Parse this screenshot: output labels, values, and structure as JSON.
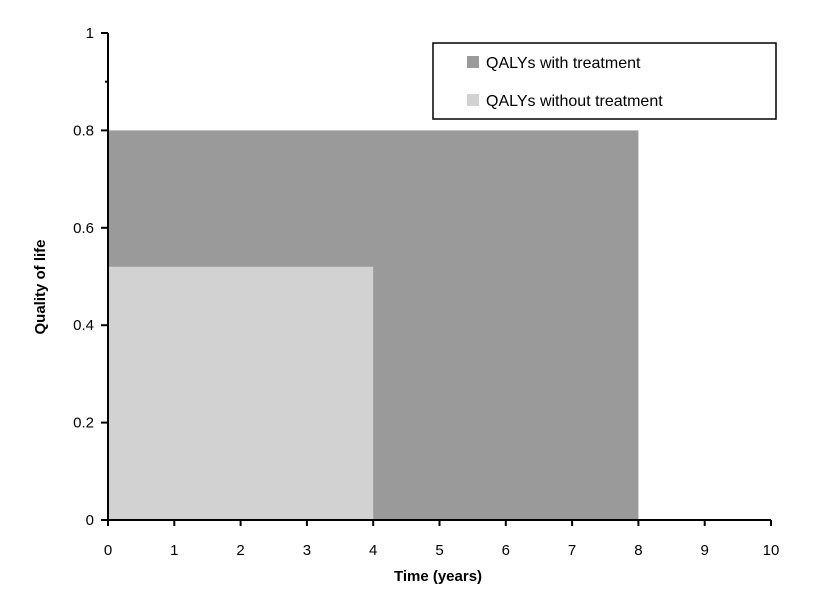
{
  "chart_data": {
    "type": "area",
    "xlabel": "Time (years)",
    "ylabel": "Quality of life",
    "xlim": [
      0,
      10
    ],
    "ylim": [
      0,
      1
    ],
    "x_ticks": [
      "0",
      "1",
      "2",
      "3",
      "4",
      "5",
      "6",
      "7",
      "8",
      "9",
      "10"
    ],
    "y_ticks": [
      "0",
      "0.2",
      "0.4",
      "0.6",
      "0.8",
      "1"
    ],
    "grid": false,
    "legend_position": "top-right",
    "series": [
      {
        "name": "QALYs with treatment",
        "color": "#9a9a9a",
        "x_start": 0,
        "x_end": 8,
        "value": 0.8
      },
      {
        "name": "QALYs without treatment",
        "color": "#d2d2d2",
        "x_start": 0,
        "x_end": 4,
        "value": 0.52
      }
    ]
  }
}
